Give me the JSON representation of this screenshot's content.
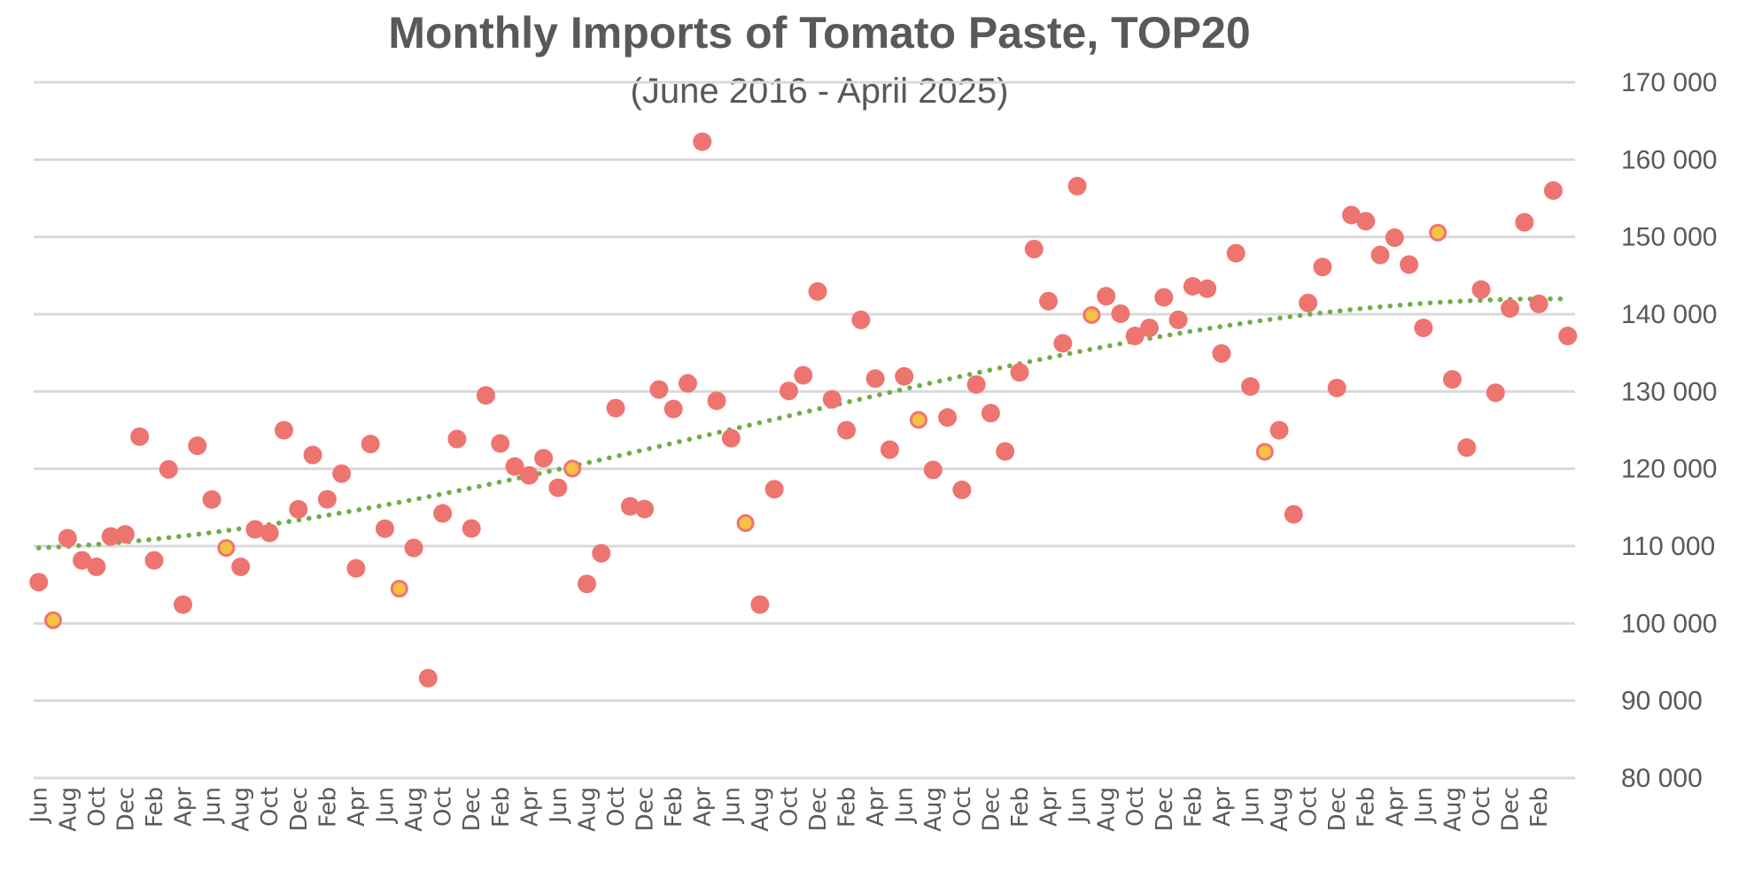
{
  "chart_data": {
    "type": "scatter",
    "title": "Monthly Imports of Tomato Paste, TOP20",
    "subtitle": "(June 2016 - April 2025)",
    "xlabel": "",
    "ylabel": "",
    "ylim": [
      80000,
      170000
    ],
    "y_ticks": [
      80000,
      90000,
      100000,
      110000,
      120000,
      130000,
      140000,
      150000,
      160000,
      170000
    ],
    "y_tick_labels": [
      "80 000",
      "90 000",
      "100 000",
      "110 000",
      "120 000",
      "130 000",
      "140 000",
      "150 000",
      "160 000",
      "170 000"
    ],
    "y_axis_position": "right",
    "grid": true,
    "x_tick_every": 2,
    "x_tick_labels": [
      "Jun",
      "Aug",
      "Oct",
      "Dec",
      "Feb",
      "Apr",
      "Jun",
      "Aug",
      "Oct",
      "Dec",
      "Feb",
      "Apr",
      "Jun",
      "Aug",
      "Oct",
      "Dec",
      "Feb",
      "Apr",
      "Jun",
      "Aug",
      "Oct",
      "Dec",
      "Feb",
      "Apr",
      "Jun",
      "Aug",
      "Oct",
      "Dec",
      "Feb",
      "Apr",
      "Jun",
      "Aug",
      "Oct",
      "Dec",
      "Feb",
      "Apr",
      "Jun",
      "Aug",
      "Oct",
      "Dec",
      "Feb",
      "Apr",
      "Jun",
      "Aug",
      "Oct",
      "Dec",
      "Feb",
      "Apr",
      "Jun",
      "Aug",
      "Oct",
      "Dec",
      "Feb"
    ],
    "colors": {
      "point": "#ee7470",
      "highlight": "#f5c242",
      "highlight_border": "#ee7470",
      "trend": "#70ad47",
      "grid": "#d9d9d9",
      "text": "#595959"
    },
    "legend": "none",
    "trendline": {
      "type": "polynomial",
      "style": "dotted",
      "start_value": 109700,
      "end_value": 141900
    },
    "highlight_note": "July of each year shown as yellow point",
    "series": [
      {
        "name": "Monthly imports",
        "x": [
          "2016-06",
          "2016-07",
          "2016-08",
          "2016-09",
          "2016-10",
          "2016-11",
          "2016-12",
          "2017-01",
          "2017-02",
          "2017-03",
          "2017-04",
          "2017-05",
          "2017-06",
          "2017-07",
          "2017-08",
          "2017-09",
          "2017-10",
          "2017-11",
          "2017-12",
          "2018-01",
          "2018-02",
          "2018-03",
          "2018-04",
          "2018-05",
          "2018-06",
          "2018-07",
          "2018-08",
          "2018-09",
          "2018-10",
          "2018-11",
          "2018-12",
          "2019-01",
          "2019-02",
          "2019-03",
          "2019-04",
          "2019-05",
          "2019-06",
          "2019-07",
          "2019-08",
          "2019-09",
          "2019-10",
          "2019-11",
          "2019-12",
          "2020-01",
          "2020-02",
          "2020-03",
          "2020-04",
          "2020-05",
          "2020-06",
          "2020-07",
          "2020-08",
          "2020-09",
          "2020-10",
          "2020-11",
          "2020-12",
          "2021-01",
          "2021-02",
          "2021-03",
          "2021-04",
          "2021-05",
          "2021-06",
          "2021-07",
          "2021-08",
          "2021-09",
          "2021-10",
          "2021-11",
          "2021-12",
          "2022-01",
          "2022-02",
          "2022-03",
          "2022-04",
          "2022-05",
          "2022-06",
          "2022-07",
          "2022-08",
          "2022-09",
          "2022-10",
          "2022-11",
          "2022-12",
          "2023-01",
          "2023-02",
          "2023-03",
          "2023-04",
          "2023-05",
          "2023-06",
          "2023-07",
          "2023-08",
          "2023-09",
          "2023-10",
          "2023-11",
          "2023-12",
          "2024-01",
          "2024-02",
          "2024-03",
          "2024-04",
          "2024-05",
          "2024-06",
          "2024-07",
          "2024-08",
          "2024-09",
          "2024-10",
          "2024-11",
          "2024-12",
          "2025-01",
          "2025-02",
          "2025-03",
          "2025-04"
        ],
        "values": [
          105340,
          100410,
          111020,
          108160,
          107320,
          111250,
          111520,
          124160,
          108160,
          119920,
          102430,
          122980,
          116030,
          109760,
          107320,
          112170,
          111710,
          124990,
          114760,
          121790,
          116060,
          119380,
          107120,
          123210,
          112250,
          104490,
          109760,
          92920,
          114230,
          123850,
          112280,
          129500,
          123280,
          120300,
          119150,
          121370,
          117550,
          120030,
          105110,
          109070,
          127850,
          115140,
          114800,
          130260,
          127740,
          131050,
          162320,
          128800,
          123960,
          112970,
          102430,
          117360,
          130070,
          132100,
          142940,
          128990,
          124990,
          139270,
          131670,
          122480,
          131960,
          126330,
          119860,
          126640,
          117280,
          130900,
          127200,
          122250,
          132480,
          148430,
          141690,
          136240,
          156570,
          139890,
          142330,
          140070,
          137190,
          138230,
          142180,
          139270,
          143610,
          143300,
          134920,
          147890,
          130650,
          122200,
          124990,
          114110,
          141450,
          146110,
          130460,
          152830,
          152030,
          147670,
          149900,
          146420,
          138230,
          150550,
          131570,
          122750,
          143190,
          129840,
          140760,
          151890,
          141340,
          156000,
          137190
        ],
        "highlighted": [
          false,
          true,
          false,
          false,
          false,
          false,
          false,
          false,
          false,
          false,
          false,
          false,
          false,
          true,
          false,
          false,
          false,
          false,
          false,
          false,
          false,
          false,
          false,
          false,
          false,
          true,
          false,
          false,
          false,
          false,
          false,
          false,
          false,
          false,
          false,
          false,
          false,
          true,
          false,
          false,
          false,
          false,
          false,
          false,
          false,
          false,
          false,
          false,
          false,
          true,
          false,
          false,
          false,
          false,
          false,
          false,
          false,
          false,
          false,
          false,
          false,
          true,
          false,
          false,
          false,
          false,
          false,
          false,
          false,
          false,
          false,
          false,
          false,
          true,
          false,
          false,
          false,
          false,
          false,
          false,
          false,
          false,
          false,
          false,
          false,
          true,
          false,
          false,
          false,
          false,
          false,
          false,
          false,
          false,
          false,
          false,
          false,
          true,
          false,
          false,
          false,
          false,
          false,
          false,
          false,
          false,
          false
        ]
      }
    ]
  }
}
